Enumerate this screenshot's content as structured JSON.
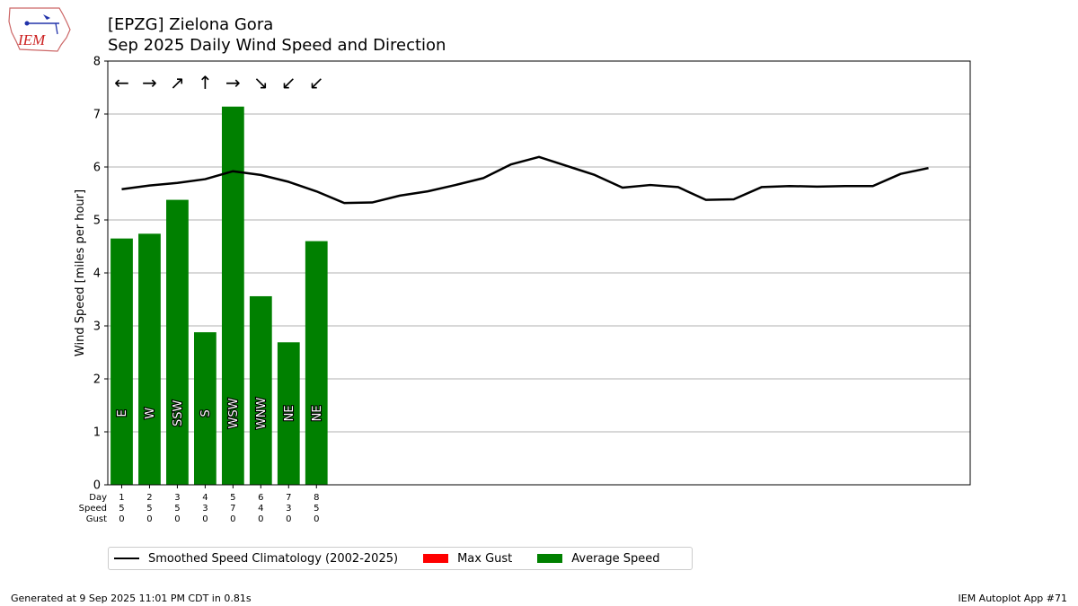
{
  "header": {
    "title_line1": "[EPZG] Zielona Gora",
    "title_line2": "Sep 2025 Daily Wind Speed and Direction"
  },
  "logo": {
    "text": "IEM",
    "color": "#cc2222"
  },
  "footer": {
    "left": "Generated at 9 Sep 2025 11:01 PM CDT in 0.81s",
    "right": "IEM Autoplot App #71"
  },
  "legend": {
    "items": [
      {
        "label": "Smoothed Speed Climatology (2002-2025)",
        "kind": "line",
        "color": "#000000"
      },
      {
        "label": "Max Gust",
        "kind": "patch",
        "color": "#ff0000"
      },
      {
        "label": "Average Speed",
        "kind": "patch",
        "color": "#008000"
      }
    ]
  },
  "chart_data": {
    "type": "bar",
    "ylabel": "Wind Speed [miles per hour]",
    "ylim": [
      0,
      8
    ],
    "yticks": [
      0,
      1,
      2,
      3,
      4,
      5,
      6,
      7,
      8
    ],
    "xlim": [
      0.5,
      31.5
    ],
    "grid": "horizontal",
    "bar_color": "#008000",
    "row_labels": [
      "Day",
      "Speed",
      "Gust"
    ],
    "days": [
      1,
      2,
      3,
      4,
      5,
      6,
      7,
      8
    ],
    "avg_speed": [
      4.65,
      4.74,
      5.38,
      2.88,
      7.14,
      3.56,
      2.69,
      4.6
    ],
    "speed_labels": [
      "5",
      "5",
      "5",
      "3",
      "7",
      "4",
      "3",
      "5"
    ],
    "gust_labels": [
      "0",
      "0",
      "0",
      "0",
      "0",
      "0",
      "0",
      "0"
    ],
    "direction_labels": [
      "E",
      "W",
      "SSW",
      "S",
      "WSW",
      "WNW",
      "NE",
      "NE"
    ],
    "arrows": [
      "←",
      "→",
      "↗",
      "↑",
      "→",
      "↘",
      "↙",
      "↙"
    ],
    "climatology": {
      "name": "Smoothed Speed Climatology (2002-2025)",
      "x": [
        1,
        2,
        3,
        4,
        5,
        6,
        7,
        8,
        9,
        10,
        11,
        12,
        13,
        14,
        15,
        16,
        17,
        18,
        19,
        20,
        21,
        22,
        23,
        24,
        25,
        26,
        27,
        28,
        29,
        30
      ],
      "y": [
        5.58,
        5.65,
        5.7,
        5.77,
        5.92,
        5.85,
        5.72,
        5.54,
        5.32,
        5.33,
        5.46,
        5.54,
        5.66,
        5.79,
        6.05,
        6.19,
        6.02,
        5.85,
        5.61,
        5.66,
        5.62,
        5.38,
        5.39,
        5.62,
        5.64,
        5.63,
        5.64,
        5.64,
        5.87,
        5.98
      ]
    }
  }
}
